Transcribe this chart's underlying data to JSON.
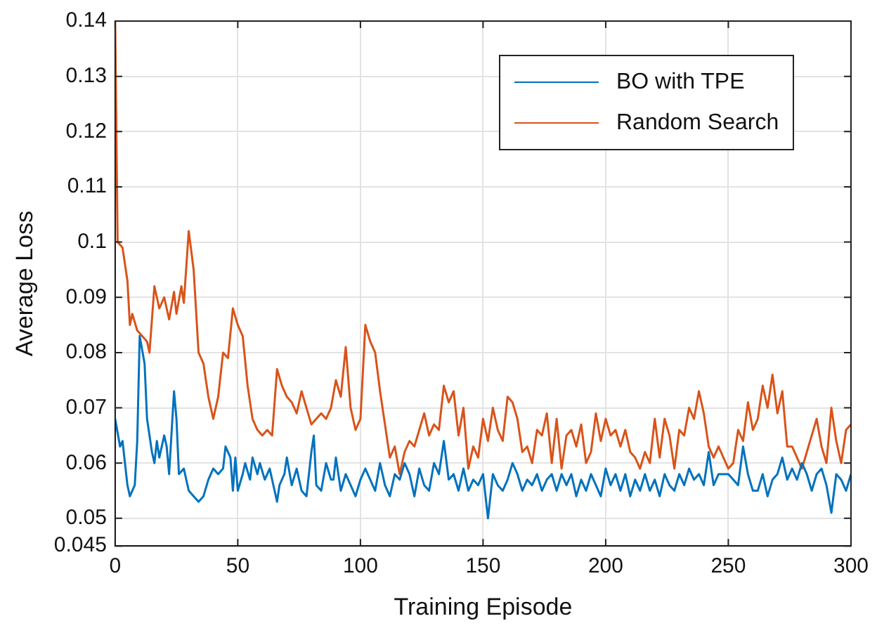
{
  "chart_data": {
    "type": "line",
    "xlabel": "Training Episode",
    "ylabel": "Average Loss",
    "xlim": [
      0,
      300
    ],
    "xticks": [
      0,
      50,
      100,
      150,
      200,
      250,
      300
    ],
    "ylim": [
      0.045,
      0.14
    ],
    "yticks": [
      0.045,
      0.05,
      0.06,
      0.07,
      0.08,
      0.09,
      0.1,
      0.11,
      0.12,
      0.13,
      0.14
    ],
    "grid": true,
    "legend": "top right",
    "marker": "none",
    "line_style": "solid",
    "series": [
      {
        "name": "BO with TPE",
        "color": "#0072bd",
        "x": [
          0,
          2,
          3,
          5,
          6,
          8,
          9,
          10,
          12,
          13,
          15,
          16,
          17,
          18,
          20,
          21,
          22,
          24,
          25,
          26,
          28,
          30,
          32,
          34,
          36,
          38,
          40,
          42,
          44,
          45,
          47,
          48,
          49,
          50,
          52,
          53,
          55,
          56,
          58,
          59,
          61,
          63,
          65,
          66,
          67,
          69,
          70,
          72,
          74,
          76,
          78,
          80,
          81,
          82,
          84,
          86,
          88,
          89,
          90,
          92,
          94,
          96,
          98,
          100,
          102,
          104,
          106,
          108,
          110,
          112,
          114,
          116,
          118,
          120,
          122,
          124,
          126,
          128,
          130,
          132,
          134,
          136,
          138,
          140,
          142,
          144,
          146,
          148,
          150,
          152,
          154,
          156,
          158,
          160,
          162,
          164,
          166,
          168,
          170,
          172,
          174,
          176,
          178,
          180,
          182,
          184,
          186,
          188,
          190,
          192,
          194,
          196,
          198,
          200,
          202,
          204,
          206,
          208,
          210,
          212,
          214,
          216,
          218,
          220,
          222,
          224,
          226,
          228,
          230,
          232,
          234,
          236,
          238,
          240,
          242,
          244,
          246,
          248,
          250,
          252,
          254,
          256,
          258,
          260,
          262,
          264,
          266,
          268,
          270,
          272,
          274,
          276,
          278,
          280,
          282,
          284,
          286,
          288,
          290,
          292,
          294,
          296,
          298,
          300
        ],
        "values": [
          0.068,
          0.063,
          0.064,
          0.056,
          0.054,
          0.056,
          0.064,
          0.083,
          0.078,
          0.068,
          0.062,
          0.06,
          0.064,
          0.061,
          0.065,
          0.063,
          0.058,
          0.073,
          0.068,
          0.058,
          0.059,
          0.055,
          0.054,
          0.053,
          0.054,
          0.057,
          0.059,
          0.058,
          0.059,
          0.063,
          0.061,
          0.055,
          0.061,
          0.055,
          0.058,
          0.06,
          0.057,
          0.061,
          0.058,
          0.06,
          0.057,
          0.059,
          0.055,
          0.053,
          0.056,
          0.058,
          0.061,
          0.056,
          0.059,
          0.055,
          0.054,
          0.062,
          0.065,
          0.056,
          0.055,
          0.06,
          0.057,
          0.057,
          0.061,
          0.055,
          0.058,
          0.056,
          0.054,
          0.057,
          0.059,
          0.057,
          0.055,
          0.06,
          0.056,
          0.054,
          0.058,
          0.057,
          0.06,
          0.058,
          0.054,
          0.059,
          0.056,
          0.055,
          0.06,
          0.058,
          0.064,
          0.057,
          0.058,
          0.055,
          0.059,
          0.055,
          0.057,
          0.056,
          0.058,
          0.05,
          0.058,
          0.056,
          0.055,
          0.057,
          0.06,
          0.058,
          0.055,
          0.057,
          0.056,
          0.058,
          0.055,
          0.057,
          0.058,
          0.055,
          0.058,
          0.056,
          0.058,
          0.054,
          0.057,
          0.055,
          0.058,
          0.056,
          0.054,
          0.059,
          0.056,
          0.058,
          0.055,
          0.058,
          0.054,
          0.057,
          0.055,
          0.058,
          0.055,
          0.057,
          0.054,
          0.058,
          0.056,
          0.055,
          0.058,
          0.056,
          0.059,
          0.057,
          0.058,
          0.056,
          0.062,
          0.056,
          0.058,
          0.058,
          0.058,
          0.057,
          0.056,
          0.063,
          0.058,
          0.055,
          0.055,
          0.058,
          0.054,
          0.057,
          0.058,
          0.061,
          0.057,
          0.059,
          0.057,
          0.06,
          0.058,
          0.055,
          0.058,
          0.059,
          0.056,
          0.051,
          0.058,
          0.057,
          0.055,
          0.058
        ]
      },
      {
        "name": "Random Search",
        "color": "#d95319",
        "x": [
          0,
          1,
          3,
          5,
          6,
          7,
          9,
          11,
          13,
          14,
          16,
          18,
          20,
          22,
          24,
          25,
          27,
          28,
          30,
          32,
          34,
          36,
          38,
          40,
          42,
          44,
          46,
          48,
          50,
          52,
          54,
          56,
          58,
          60,
          62,
          64,
          66,
          68,
          70,
          72,
          74,
          76,
          78,
          80,
          82,
          84,
          86,
          88,
          90,
          92,
          94,
          96,
          98,
          100,
          102,
          104,
          106,
          108,
          110,
          112,
          114,
          116,
          118,
          120,
          122,
          124,
          126,
          128,
          130,
          132,
          134,
          136,
          138,
          140,
          142,
          144,
          146,
          148,
          150,
          152,
          154,
          156,
          158,
          160,
          162,
          164,
          166,
          168,
          170,
          172,
          174,
          176,
          178,
          180,
          182,
          184,
          186,
          188,
          190,
          192,
          194,
          196,
          198,
          200,
          202,
          204,
          206,
          208,
          210,
          212,
          214,
          216,
          218,
          220,
          222,
          224,
          226,
          228,
          230,
          232,
          234,
          236,
          238,
          240,
          242,
          244,
          246,
          248,
          250,
          252,
          254,
          256,
          258,
          260,
          262,
          264,
          266,
          268,
          270,
          272,
          274,
          276,
          278,
          280,
          282,
          284,
          286,
          288,
          290,
          292,
          294,
          296,
          298,
          300
        ],
        "values": [
          0.14,
          0.1,
          0.099,
          0.093,
          0.085,
          0.087,
          0.084,
          0.083,
          0.082,
          0.08,
          0.092,
          0.088,
          0.09,
          0.086,
          0.091,
          0.087,
          0.092,
          0.089,
          0.102,
          0.095,
          0.08,
          0.078,
          0.072,
          0.068,
          0.072,
          0.08,
          0.079,
          0.088,
          0.085,
          0.083,
          0.074,
          0.068,
          0.066,
          0.065,
          0.066,
          0.065,
          0.077,
          0.074,
          0.072,
          0.071,
          0.069,
          0.073,
          0.07,
          0.067,
          0.068,
          0.069,
          0.068,
          0.07,
          0.075,
          0.072,
          0.081,
          0.07,
          0.066,
          0.068,
          0.085,
          0.082,
          0.08,
          0.073,
          0.067,
          0.061,
          0.063,
          0.058,
          0.062,
          0.064,
          0.063,
          0.066,
          0.069,
          0.065,
          0.067,
          0.066,
          0.074,
          0.071,
          0.073,
          0.065,
          0.07,
          0.059,
          0.063,
          0.061,
          0.068,
          0.064,
          0.07,
          0.066,
          0.064,
          0.072,
          0.071,
          0.068,
          0.062,
          0.063,
          0.06,
          0.066,
          0.065,
          0.069,
          0.06,
          0.068,
          0.059,
          0.065,
          0.066,
          0.063,
          0.067,
          0.06,
          0.062,
          0.069,
          0.064,
          0.068,
          0.065,
          0.066,
          0.063,
          0.066,
          0.062,
          0.061,
          0.059,
          0.062,
          0.06,
          0.068,
          0.061,
          0.068,
          0.065,
          0.059,
          0.066,
          0.065,
          0.07,
          0.068,
          0.073,
          0.069,
          0.063,
          0.061,
          0.063,
          0.061,
          0.059,
          0.06,
          0.066,
          0.064,
          0.071,
          0.066,
          0.068,
          0.074,
          0.07,
          0.076,
          0.069,
          0.073,
          0.063,
          0.063,
          0.061,
          0.059,
          0.062,
          0.065,
          0.068,
          0.063,
          0.06,
          0.07,
          0.064,
          0.06,
          0.066,
          0.067
        ]
      }
    ]
  }
}
